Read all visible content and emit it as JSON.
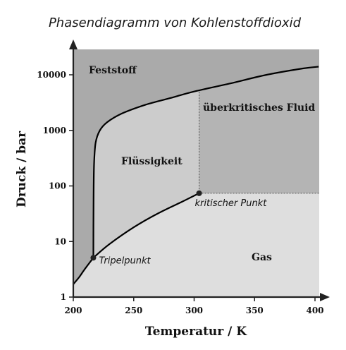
{
  "title": "Phasendiagramm von Kohlenstoffdioxid",
  "chart_data": {
    "type": "phase-diagram",
    "xlabel": "Temperatur / K",
    "ylabel": "Druck / bar",
    "xlim": [
      200,
      410
    ],
    "ylim": [
      1,
      30000
    ],
    "yscale": "log",
    "x_ticks": [
      200,
      250,
      300,
      350,
      400
    ],
    "y_ticks": [
      {
        "value": 1,
        "label": "1"
      },
      {
        "value": 10,
        "label": "10"
      },
      {
        "value": 100,
        "label": "100"
      },
      {
        "value": 1000,
        "label": "1000"
      },
      {
        "value": 10000,
        "label": "10000"
      }
    ],
    "regions": [
      {
        "name": "Feststoff",
        "label": "Feststoff",
        "color": "#aaaaaa"
      },
      {
        "name": "Flüssigkeit",
        "label": "Flüssigkeit",
        "color": "#cccccc"
      },
      {
        "name": "überkritisches Fluid",
        "label": "überkritisches Fluid",
        "color": "#b4b4b4"
      },
      {
        "name": "Gas",
        "label": "Gas",
        "color": "#dedede"
      }
    ],
    "points": [
      {
        "name": "Tripelpunkt",
        "label": "Tripelpunkt",
        "T": 216.6,
        "p": 5.1
      },
      {
        "name": "kritischer Punkt",
        "label": "kritischer Punkt",
        "T": 304.1,
        "p": 73.8
      }
    ],
    "curves": {
      "sublimation": [
        [
          200,
          1.7
        ],
        [
          205,
          2.3
        ],
        [
          210,
          3.3
        ],
        [
          216.6,
          5.1
        ]
      ],
      "vaporization": [
        [
          216.6,
          5.1
        ],
        [
          230,
          9
        ],
        [
          250,
          18
        ],
        [
          270,
          32
        ],
        [
          290,
          52
        ],
        [
          304.1,
          73.8
        ]
      ],
      "melting": [
        [
          216.6,
          5.1
        ],
        [
          216.8,
          60
        ],
        [
          217.2,
          250
        ],
        [
          218.5,
          600
        ],
        [
          222,
          1000
        ],
        [
          228,
          1400
        ],
        [
          240,
          2000
        ],
        [
          260,
          2900
        ],
        [
          280,
          3800
        ],
        [
          300,
          5000
        ],
        [
          330,
          7000
        ],
        [
          360,
          10000
        ],
        [
          390,
          13000
        ],
        [
          403,
          14000
        ]
      ]
    },
    "critical_isotherm_dashed": true,
    "critical_isobar_dashed": true,
    "grid": false,
    "legend": "none"
  }
}
